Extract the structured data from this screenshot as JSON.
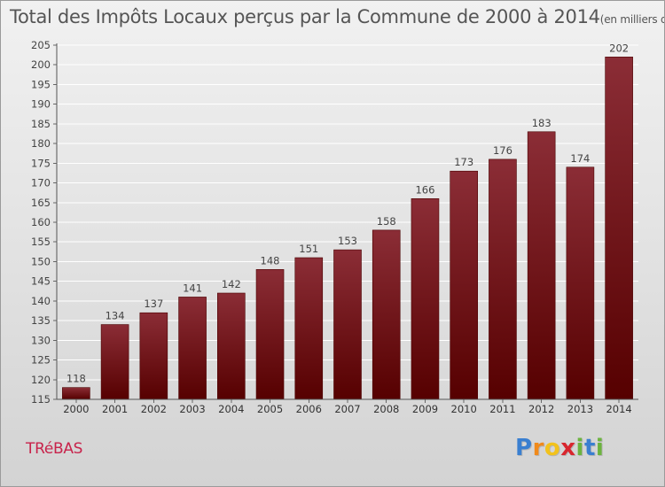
{
  "chart_data": {
    "type": "bar",
    "title": "Total des Impôts Locaux perçus par la Commune de 2000 à 2014",
    "subtitle": "(en milliers d'€)",
    "categories": [
      "2000",
      "2001",
      "2002",
      "2003",
      "2004",
      "2005",
      "2006",
      "2007",
      "2008",
      "2009",
      "2010",
      "2011",
      "2012",
      "2013",
      "2014"
    ],
    "values": [
      118,
      134,
      137,
      141,
      142,
      148,
      151,
      153,
      158,
      166,
      173,
      176,
      183,
      174,
      202
    ],
    "ylim": [
      115,
      205
    ],
    "yticks": [
      115,
      120,
      125,
      130,
      135,
      140,
      145,
      150,
      155,
      160,
      165,
      170,
      175,
      180,
      185,
      190,
      195,
      200,
      205
    ],
    "grid": true,
    "bar_color_top": "#8b2d36",
    "bar_color_bottom": "#560000"
  },
  "commune": "TRéBAS",
  "logo": {
    "letters": [
      "P",
      "r",
      "o",
      "x",
      "i",
      "t",
      "i"
    ],
    "colors": [
      "#3a7fd0",
      "#f08a1c",
      "#f2c21c",
      "#d8262e",
      "#6cb33f",
      "#3a7fd0",
      "#6cb33f"
    ]
  }
}
